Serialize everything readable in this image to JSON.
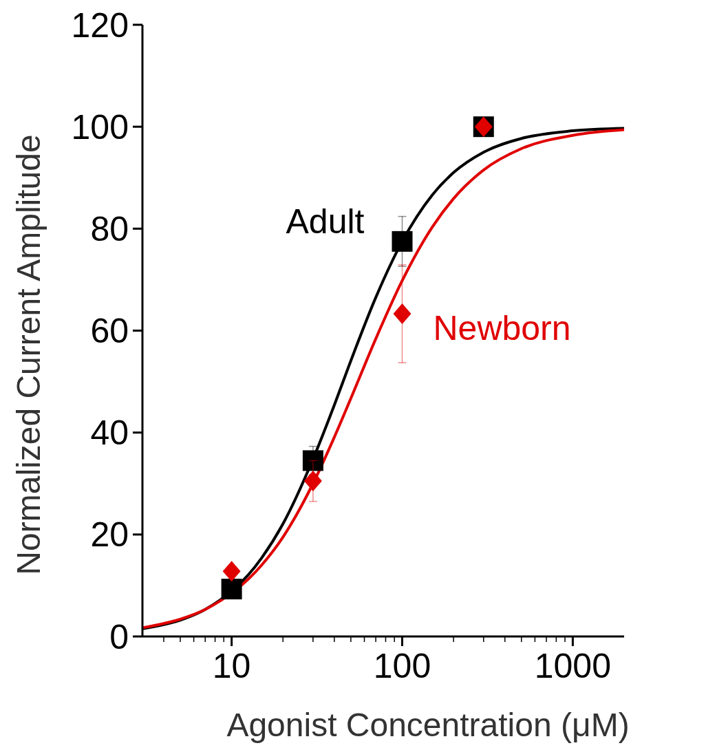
{
  "chart_data": {
    "type": "scatter",
    "xlabel": "Agonist Concentration (μM)",
    "ylabel": "Normalized Current Amplitude",
    "log": "x",
    "xlim": [
      3,
      2000
    ],
    "ylim": [
      0,
      120
    ],
    "xticks": [
      {
        "value": 4,
        "label": null
      },
      {
        "value": 5,
        "label": null
      },
      {
        "value": 6,
        "label": null
      },
      {
        "value": 7,
        "label": null
      },
      {
        "value": 8,
        "label": null
      },
      {
        "value": 9,
        "label": null
      },
      10,
      {
        "value": 20,
        "label": null
      },
      {
        "value": 30,
        "label": null
      },
      {
        "value": 40,
        "label": null
      },
      {
        "value": 50,
        "label": null
      },
      {
        "value": 60,
        "label": null
      },
      {
        "value": 70,
        "label": null
      },
      {
        "value": 80,
        "label": null
      },
      {
        "value": 90,
        "label": null
      },
      100,
      {
        "value": 200,
        "label": null
      },
      {
        "value": 300,
        "label": null
      },
      {
        "value": 400,
        "label": null
      },
      {
        "value": 500,
        "label": null
      },
      {
        "value": 600,
        "label": null
      },
      {
        "value": 700,
        "label": null
      },
      {
        "value": 800,
        "label": null
      },
      {
        "value": 900,
        "label": null
      },
      1000
    ],
    "yticks": [
      0,
      20,
      40,
      60,
      80,
      100,
      120
    ],
    "grid": false,
    "series": [
      {
        "type": "line",
        "color": "#000000",
        "x": [
          3,
          5,
          7,
          15,
          20,
          30,
          40,
          50,
          70,
          100,
          150,
          200,
          300,
          500,
          1000,
          2000
        ],
        "values": [
          1.5,
          3.2,
          5.3,
          15.4,
          22.1,
          34.8,
          45.4,
          54.1,
          66.5,
          77.5,
          86.6,
          91.0,
          95.0,
          97.7,
          99.2,
          99.7
        ]
      },
      {
        "type": "line",
        "color": "#e00000",
        "x": [
          3,
          5,
          7,
          15,
          20,
          30,
          40,
          50,
          70,
          100,
          150,
          200,
          300,
          500,
          1000,
          2000
        ],
        "values": [
          1.7,
          3.4,
          5.3,
          14.0,
          19.5,
          30.0,
          39.1,
          46.7,
          58.4,
          69.8,
          80.3,
          85.9,
          91.5,
          95.7,
          98.3,
          99.4
        ]
      },
      {
        "type": "scatter",
        "name": "Adult",
        "color": "#000000",
        "marker": "square",
        "x": [
          10,
          30,
          100,
          300
        ],
        "values": [
          9.3,
          34.5,
          77.5,
          100
        ],
        "errors": [
          null,
          2.8,
          4.9,
          null
        ]
      },
      {
        "type": "scatter",
        "name": "Newborn",
        "color": "#e00000",
        "marker": "diamond",
        "x": [
          10,
          30,
          100,
          300
        ],
        "values": [
          12.8,
          30.5,
          63.3,
          100
        ],
        "errors": [
          null,
          4,
          9.6,
          null
        ]
      }
    ]
  }
}
